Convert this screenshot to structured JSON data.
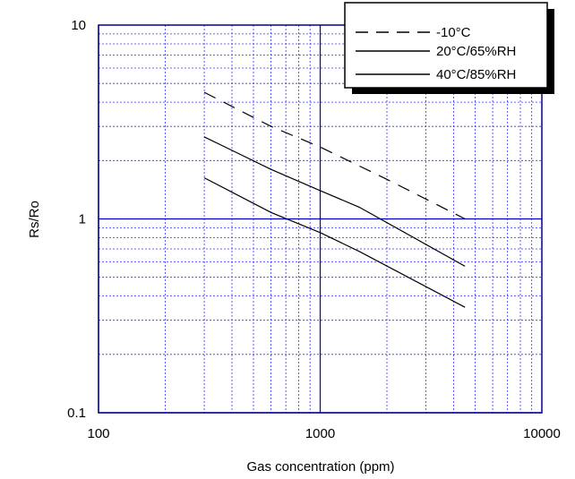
{
  "chart_data": {
    "type": "line",
    "title": "",
    "xlabel": "Gas concentration (ppm)",
    "ylabel": "Rs/Ro",
    "x_scale": "log",
    "y_scale": "log",
    "xlim": [
      100,
      10000
    ],
    "ylim": [
      0.1,
      10
    ],
    "x_tick_labels": [
      "100",
      "1000",
      "10000"
    ],
    "y_tick_labels": [
      "0.1",
      "1",
      "10"
    ],
    "grid": true,
    "legend_position": "top-right",
    "series": [
      {
        "name": "-10°C",
        "style": "dashed",
        "color": "#000000",
        "x": [
          300,
          600,
          1000,
          2000,
          4500
        ],
        "y": [
          4.5,
          3.0,
          2.35,
          1.6,
          1.0
        ]
      },
      {
        "name": "20°C/65%RH",
        "style": "solid",
        "color": "#000000",
        "x": [
          300,
          600,
          1000,
          1500,
          4500
        ],
        "y": [
          2.65,
          1.8,
          1.4,
          1.15,
          0.57
        ]
      },
      {
        "name": "40°C/85%RH",
        "style": "solid",
        "color": "#000000",
        "x": [
          300,
          600,
          1000,
          1500,
          4500
        ],
        "y": [
          1.63,
          1.08,
          0.85,
          0.68,
          0.35
        ]
      }
    ]
  },
  "colors": {
    "frame": "#00008b",
    "major_grid": "#0000cd",
    "minor_grid": "#3333ff"
  }
}
